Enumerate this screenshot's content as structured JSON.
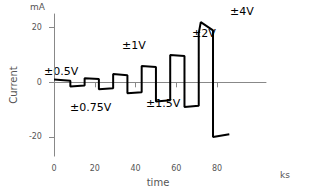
{
  "chart_data": {
    "type": "line",
    "x_label": "time",
    "x_unit": "ks",
    "y_label": "Current",
    "y_unit": "mA",
    "annotations": [
      "±0.5V",
      "±0.75V",
      "±1V",
      "±1.5V",
      "±2V",
      "±4V"
    ],
    "x": [
      0,
      8,
      8,
      15,
      15,
      22,
      22,
      29,
      29,
      36,
      36,
      43,
      43,
      50,
      50,
      57,
      57,
      64,
      64,
      71,
      71,
      72,
      74,
      76,
      78,
      78,
      86
    ],
    "values": [
      1,
      0.6,
      -1.5,
      -1.2,
      1.5,
      1.2,
      -2.5,
      -2.2,
      3,
      2.6,
      -4,
      -3.6,
      6,
      5.6,
      -7,
      -6.6,
      10,
      9.6,
      -9,
      -8.6,
      18,
      22,
      21,
      20,
      19,
      -20,
      -19
    ],
    "color": "#000000",
    "xlim": [
      -2,
      104
    ],
    "xticks": [
      0,
      20,
      40,
      60,
      80
    ],
    "ylim": [
      -27,
      25
    ],
    "yticks": [
      -20,
      0,
      20
    ],
    "grid": false
  }
}
